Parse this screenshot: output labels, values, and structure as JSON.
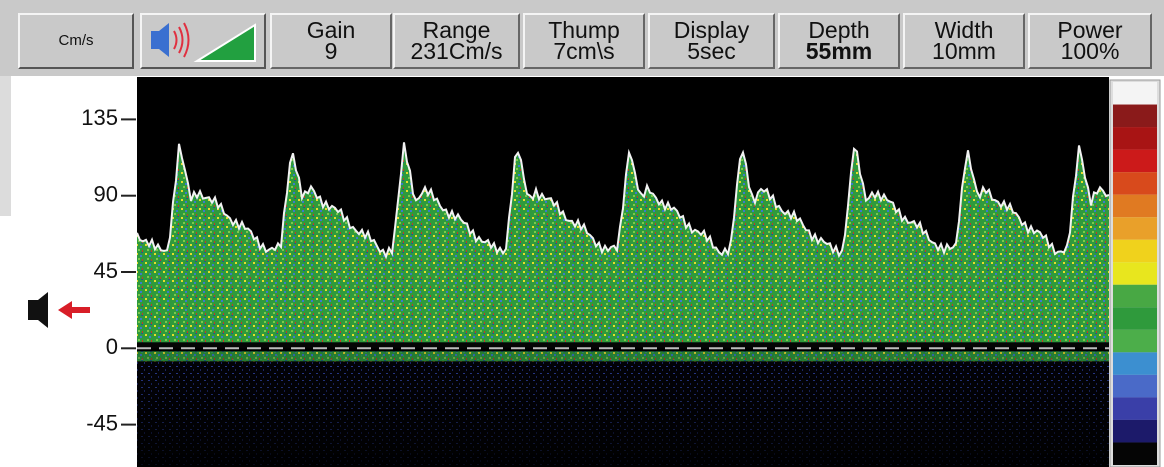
{
  "toolbar": {
    "unit_button": "Cm/s",
    "fields": [
      {
        "label": "Gain",
        "value": "9"
      },
      {
        "label": "Range",
        "value": "231Cm/s"
      },
      {
        "label": "Thump",
        "value": "7cm\\s"
      },
      {
        "label": "Display",
        "value": "5sec"
      },
      {
        "label": "Depth",
        "value": "55mm"
      },
      {
        "label": "Width",
        "value": "10mm"
      },
      {
        "label": "Power",
        "value": "100%"
      }
    ]
  },
  "chart_data": {
    "type": "spectrogram",
    "ylim": [
      -70,
      160
    ],
    "yticks": [
      135,
      90,
      45,
      0,
      -45
    ]
  }
}
